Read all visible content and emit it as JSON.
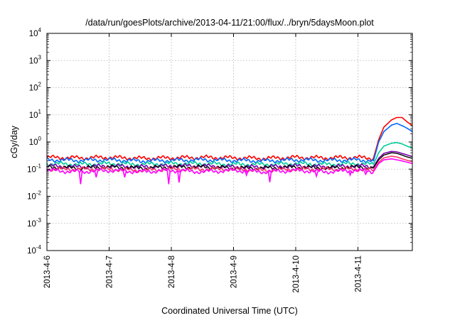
{
  "chart_data": {
    "type": "line",
    "title": "/data/run/goesPlots/archive/2013-04-11/21:00/flux/../bryn/5daysMoon.plot",
    "xlabel": "Coordinated Universal Time (UTC)",
    "ylabel": "cGy/day",
    "y_scale": "log",
    "ylim": [
      0.0001,
      10000
    ],
    "xlim": [
      "2013-04-06 00:00",
      "2013-04-11 21:00"
    ],
    "grid": true,
    "x_ticks": [
      "2013-4-6",
      "2013-4-7",
      "2013-4-8",
      "2013-4-9",
      "2013-4-10",
      "2013-4-11"
    ],
    "y_ticks": [
      {
        "base": "10",
        "exp": "4"
      },
      {
        "base": "10",
        "exp": "3"
      },
      {
        "base": "10",
        "exp": "2"
      },
      {
        "base": "10",
        "exp": "1"
      },
      {
        "base": "10",
        "exp": "0"
      },
      {
        "base": "10",
        "exp": "-1"
      },
      {
        "base": "10",
        "exp": "-2"
      },
      {
        "base": "10",
        "exp": "-3"
      },
      {
        "base": "10",
        "exp": "-4"
      }
    ],
    "x": [
      "2013-04-06 00:00",
      "2013-04-06 12:00",
      "2013-04-07 00:00",
      "2013-04-07 12:00",
      "2013-04-08 00:00",
      "2013-04-08 12:00",
      "2013-04-09 00:00",
      "2013-04-09 12:00",
      "2013-04-10 00:00",
      "2013-04-10 12:00",
      "2013-04-11 00:00",
      "2013-04-11 06:00",
      "2013-04-11 08:00",
      "2013-04-11 10:00",
      "2013-04-11 13:00",
      "2013-04-11 15:00",
      "2013-04-11 17:00",
      "2013-04-11 19:00",
      "2013-04-11 21:00"
    ],
    "series": [
      {
        "color": "#ff0000",
        "values": [
          0.27,
          0.26,
          0.27,
          0.25,
          0.26,
          0.27,
          0.26,
          0.25,
          0.27,
          0.26,
          0.27,
          0.25,
          1.2,
          3.5,
          6.5,
          8.0,
          8.0,
          5.5,
          4.0
        ]
      },
      {
        "color": "#0066ff",
        "values": [
          0.22,
          0.21,
          0.22,
          0.2,
          0.21,
          0.22,
          0.21,
          0.2,
          0.22,
          0.21,
          0.22,
          0.2,
          1.0,
          2.4,
          4.2,
          4.8,
          4.0,
          3.2,
          2.4
        ]
      },
      {
        "color": "#00cc99",
        "values": [
          0.16,
          0.15,
          0.16,
          0.15,
          0.16,
          0.16,
          0.15,
          0.15,
          0.16,
          0.15,
          0.16,
          0.15,
          0.4,
          0.7,
          0.9,
          0.95,
          0.85,
          0.7,
          0.6
        ]
      },
      {
        "color": "#7700aa",
        "values": [
          0.13,
          0.12,
          0.13,
          0.12,
          0.13,
          0.13,
          0.12,
          0.12,
          0.13,
          0.12,
          0.13,
          0.12,
          0.25,
          0.38,
          0.45,
          0.43,
          0.38,
          0.33,
          0.29
        ]
      },
      {
        "color": "#000000",
        "values": [
          0.12,
          0.11,
          0.12,
          0.11,
          0.12,
          0.12,
          0.11,
          0.11,
          0.12,
          0.11,
          0.12,
          0.11,
          0.22,
          0.33,
          0.4,
          0.38,
          0.33,
          0.28,
          0.25
        ]
      },
      {
        "color": "#ff3366",
        "values": [
          0.1,
          0.1,
          0.1,
          0.09,
          0.1,
          0.1,
          0.1,
          0.09,
          0.1,
          0.1,
          0.1,
          0.09,
          0.18,
          0.26,
          0.3,
          0.28,
          0.24,
          0.21,
          0.19
        ]
      },
      {
        "color": "#ff00ff",
        "values": [
          0.09,
          0.08,
          0.09,
          0.08,
          0.09,
          0.08,
          0.09,
          0.08,
          0.09,
          0.08,
          0.09,
          0.08,
          0.16,
          0.22,
          0.24,
          0.22,
          0.2,
          0.18,
          0.16
        ]
      }
    ],
    "dips": [
      {
        "series": 6,
        "x": "2013-04-06 13:00",
        "value": 0.028
      },
      {
        "series": 6,
        "x": "2013-04-07 23:00",
        "value": 0.028
      },
      {
        "series": 6,
        "x": "2013-04-08 03:00",
        "value": 0.032
      },
      {
        "series": 6,
        "x": "2013-04-09 14:00",
        "value": 0.033
      },
      {
        "series": 6,
        "x": "2013-04-06 19:00",
        "value": 0.05
      },
      {
        "series": 6,
        "x": "2013-04-07 06:00",
        "value": 0.05
      },
      {
        "series": 6,
        "x": "2013-04-09 05:00",
        "value": 0.06
      },
      {
        "series": 6,
        "x": "2013-04-10 08:00",
        "value": 0.055
      },
      {
        "series": 6,
        "x": "2013-04-10 21:00",
        "value": 0.06
      },
      {
        "series": 6,
        "x": "2013-04-11 03:00",
        "value": 0.065
      }
    ]
  }
}
